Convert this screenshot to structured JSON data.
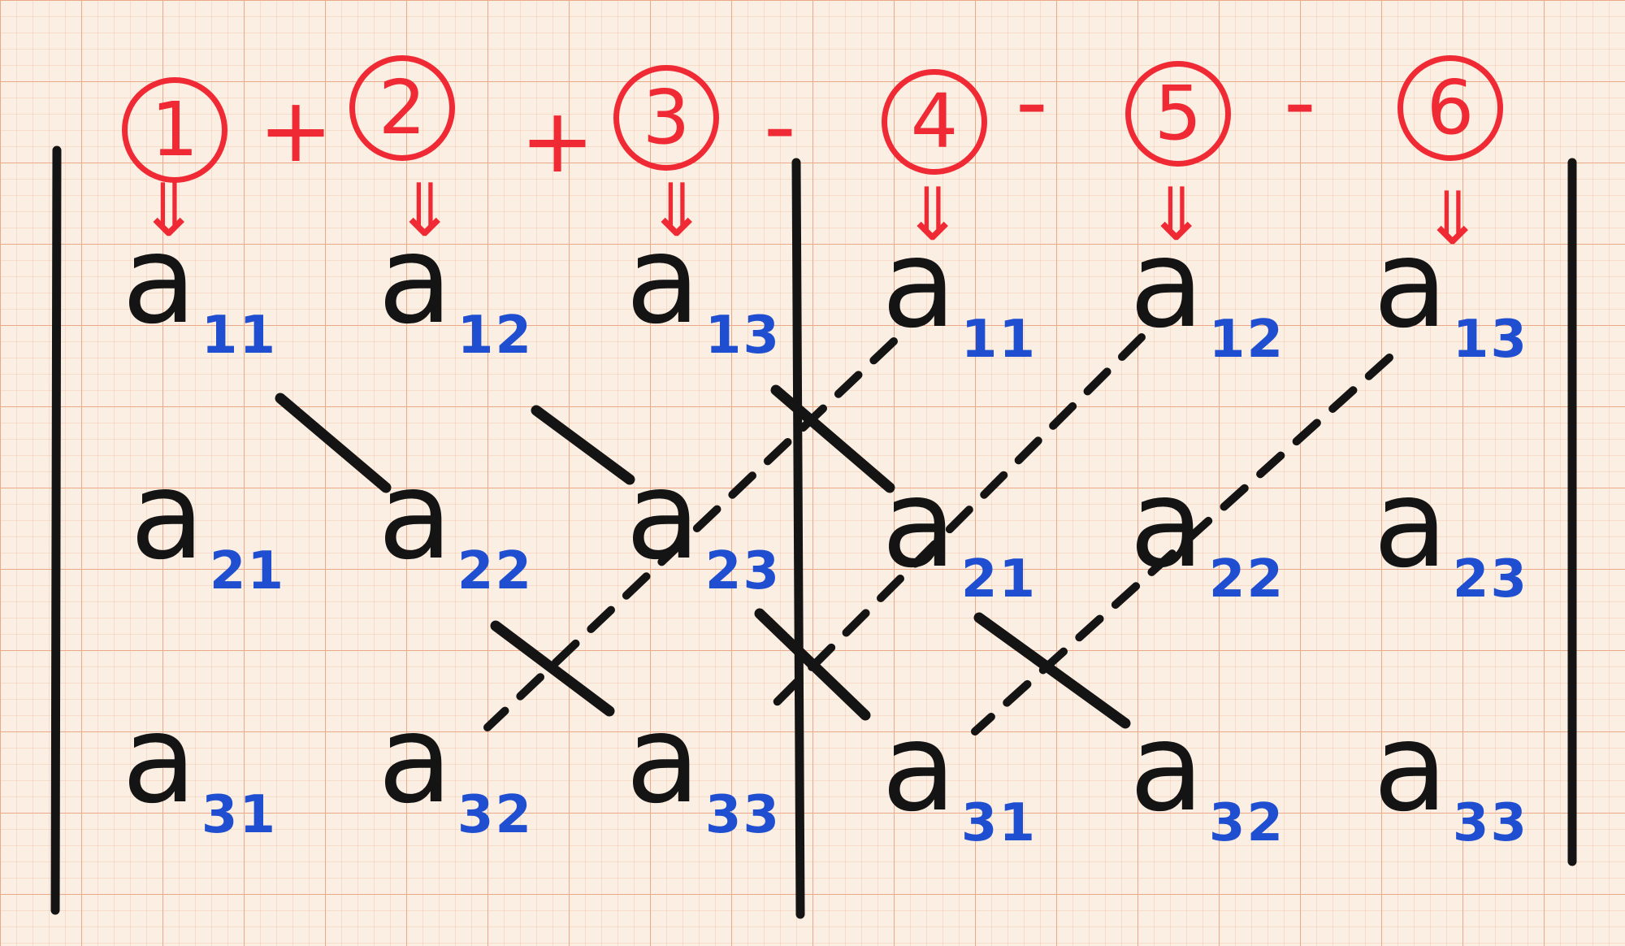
{
  "formula": {
    "terms": [
      "1",
      "2",
      "3",
      "4",
      "5",
      "6"
    ],
    "operators": [
      "+",
      "+",
      "-",
      "-",
      "-"
    ],
    "arrow_symbol": "⇓"
  },
  "matrix": {
    "letter": "a",
    "left_block": {
      "rows": [
        [
          "11",
          "12",
          "13"
        ],
        [
          "21",
          "22",
          "23"
        ],
        [
          "31",
          "32",
          "33"
        ]
      ]
    },
    "right_block": {
      "rows": [
        [
          "11",
          "12",
          "13"
        ],
        [
          "21",
          "22",
          "23"
        ],
        [
          "31",
          "32",
          "33"
        ]
      ]
    }
  },
  "colors": {
    "paper": "#fbeee2",
    "grid": "#f0b89a",
    "ink_black": "#141414",
    "ink_red": "#ef2a35",
    "ink_blue": "#1f4fd0"
  }
}
